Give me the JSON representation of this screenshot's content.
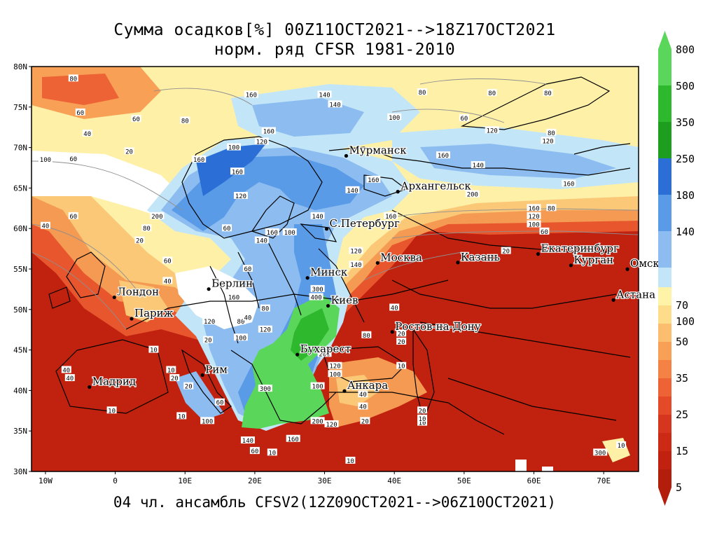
{
  "title": {
    "line1": "Сумма осадков[%] 00Z11OCT2021-->18Z17OCT2021",
    "line2": "норм. ряд CFSR 1981-2010"
  },
  "footer": "04 чл. ансамбль CFSV2(12Z09OCT2021-->06Z10OCT2021)",
  "axes": {
    "lat_labels": [
      "80N",
      "75N",
      "70N",
      "65N",
      "60N",
      "55N",
      "50N",
      "45N",
      "40N",
      "35N",
      "30N"
    ],
    "lon_labels": [
      "10W",
      "0",
      "10E",
      "20E",
      "30E",
      "40E",
      "50E",
      "60E",
      "70E"
    ]
  },
  "legend": {
    "upper": [
      {
        "label": "800",
        "color": "#5ad75a"
      },
      {
        "label": "500",
        "color": "#2eb82e"
      },
      {
        "label": "350",
        "color": "#1e9e1e"
      },
      {
        "label": "250",
        "color": "#2b6fd6"
      },
      {
        "label": "180",
        "color": "#5a9be8"
      },
      {
        "label": "140",
        "color": "#8dbdf0"
      },
      {
        "label": "",
        "color": "#c2e6f8"
      }
    ],
    "middle_label": "100",
    "lower": [
      {
        "label": "70",
        "color": "#fff3a8"
      },
      {
        "label": "",
        "color": "#fddd8a"
      },
      {
        "label": "50",
        "color": "#fbbe6e"
      },
      {
        "label": "",
        "color": "#f8a055"
      },
      {
        "label": "35",
        "color": "#f38244"
      },
      {
        "label": "",
        "color": "#ee6335"
      },
      {
        "label": "25",
        "color": "#e44a28"
      },
      {
        "label": "",
        "color": "#d6361d"
      },
      {
        "label": "15",
        "color": "#cc2a14"
      },
      {
        "label": "",
        "color": "#c0220f"
      },
      {
        "label": "5",
        "color": "#b31d0b"
      }
    ]
  },
  "cities": [
    {
      "name": "Мурманск",
      "lon": 33.1,
      "lat": 68.97
    },
    {
      "name": "Архангельск",
      "lon": 40.5,
      "lat": 64.55
    },
    {
      "name": "С.Петербург",
      "lon": 30.3,
      "lat": 59.95
    },
    {
      "name": "Москва",
      "lon": 37.6,
      "lat": 55.75
    },
    {
      "name": "Казань",
      "lon": 49.1,
      "lat": 55.8
    },
    {
      "name": "Екатеринбург",
      "lon": 60.6,
      "lat": 56.85
    },
    {
      "name": "Курган",
      "lon": 65.3,
      "lat": 55.45
    },
    {
      "name": "Омск",
      "lon": 73.4,
      "lat": 54.98
    },
    {
      "name": "Астана",
      "lon": 71.4,
      "lat": 51.17
    },
    {
      "name": "Минск",
      "lon": 27.55,
      "lat": 53.9
    },
    {
      "name": "Берлин",
      "lon": 13.4,
      "lat": 52.52
    },
    {
      "name": "Лондон",
      "lon": -0.13,
      "lat": 51.5
    },
    {
      "name": "Париж",
      "lon": 2.35,
      "lat": 48.86
    },
    {
      "name": "Киев",
      "lon": 30.5,
      "lat": 50.45
    },
    {
      "name": "Ростов-на-Дону",
      "lon": 39.7,
      "lat": 47.23
    },
    {
      "name": "Бухарест",
      "lon": 26.1,
      "lat": 44.43
    },
    {
      "name": "Рим",
      "lon": 12.5,
      "lat": 41.9
    },
    {
      "name": "Мадрид",
      "lon": -3.7,
      "lat": 40.42
    },
    {
      "name": "Анкара",
      "lon": 32.85,
      "lat": 39.93
    }
  ],
  "contour_values": [
    {
      "v": "80",
      "lon": -6,
      "lat": 78.5
    },
    {
      "v": "140",
      "lon": 30,
      "lat": 76.5
    },
    {
      "v": "140",
      "lon": 31.5,
      "lat": 75.3
    },
    {
      "v": "160",
      "lon": 19.5,
      "lat": 76.5
    },
    {
      "v": "80",
      "lon": 44,
      "lat": 76.8
    },
    {
      "v": "80",
      "lon": 54,
      "lat": 76.7
    },
    {
      "v": "80",
      "lon": 62,
      "lat": 76.7
    },
    {
      "v": "60",
      "lon": 3,
      "lat": 73.5
    },
    {
      "v": "80",
      "lon": 10,
      "lat": 73.3
    },
    {
      "v": "60",
      "lon": -5,
      "lat": 74.3
    },
    {
      "v": "40",
      "lon": -4,
      "lat": 71.7
    },
    {
      "v": "100",
      "lon": 40,
      "lat": 73.7
    },
    {
      "v": "60",
      "lon": 50,
      "lat": 73.6
    },
    {
      "v": "120",
      "lon": 54,
      "lat": 72.1
    },
    {
      "v": "80",
      "lon": 62.5,
      "lat": 71.8
    },
    {
      "v": "120",
      "lon": 62,
      "lat": 70.8
    },
    {
      "v": "160",
      "lon": 22,
      "lat": 72
    },
    {
      "v": "120",
      "lon": 21,
      "lat": 70.7
    },
    {
      "v": "100",
      "lon": 17,
      "lat": 70
    },
    {
      "v": "100",
      "lon": -10,
      "lat": 68.5
    },
    {
      "v": "60",
      "lon": -6,
      "lat": 68.6
    },
    {
      "v": "20",
      "lon": 2,
      "lat": 69.5
    },
    {
      "v": "160",
      "lon": 12,
      "lat": 68.5
    },
    {
      "v": "160",
      "lon": 47,
      "lat": 69
    },
    {
      "v": "140",
      "lon": 52,
      "lat": 67.8
    },
    {
      "v": "160",
      "lon": 37,
      "lat": 66
    },
    {
      "v": "140",
      "lon": 34,
      "lat": 64.7
    },
    {
      "v": "160",
      "lon": 17.5,
      "lat": 67
    },
    {
      "v": "120",
      "lon": 18,
      "lat": 64
    },
    {
      "v": "200",
      "lon": 51.2,
      "lat": 64.2
    },
    {
      "v": "160",
      "lon": 65,
      "lat": 65.5
    },
    {
      "v": "160",
      "lon": 60,
      "lat": 62.5
    },
    {
      "v": "120",
      "lon": 60,
      "lat": 61.5
    },
    {
      "v": "80",
      "lon": 62.5,
      "lat": 62.5
    },
    {
      "v": "100",
      "lon": 60,
      "lat": 60.5
    },
    {
      "v": "60",
      "lon": 61.5,
      "lat": 59.6
    },
    {
      "v": "200",
      "lon": 6,
      "lat": 61.5
    },
    {
      "v": "60",
      "lon": -6,
      "lat": 61.5
    },
    {
      "v": "40",
      "lon": -10,
      "lat": 60.3
    },
    {
      "v": "80",
      "lon": 4.5,
      "lat": 60
    },
    {
      "v": "60",
      "lon": 16,
      "lat": 60
    },
    {
      "v": "140",
      "lon": 29,
      "lat": 61.5
    },
    {
      "v": "160",
      "lon": 22.5,
      "lat": 59.5
    },
    {
      "v": "100",
      "lon": 25,
      "lat": 59.5
    },
    {
      "v": "140",
      "lon": 21,
      "lat": 58.5
    },
    {
      "v": "160",
      "lon": 39.5,
      "lat": 61.5
    },
    {
      "v": "120",
      "lon": 34.5,
      "lat": 57.2
    },
    {
      "v": "140",
      "lon": 34.5,
      "lat": 55.5
    },
    {
      "v": "20",
      "lon": 3.5,
      "lat": 58.5
    },
    {
      "v": "60",
      "lon": 7.5,
      "lat": 56
    },
    {
      "v": "40",
      "lon": 7.5,
      "lat": 53.5
    },
    {
      "v": "20",
      "lon": 56,
      "lat": 57.2
    },
    {
      "v": "60",
      "lon": 19,
      "lat": 55
    },
    {
      "v": "160",
      "lon": 17,
      "lat": 51.5
    },
    {
      "v": "300",
      "lon": 29,
      "lat": 52.5
    },
    {
      "v": "400",
      "lon": 28.8,
      "lat": 51.5
    },
    {
      "v": "80",
      "lon": 21.5,
      "lat": 50.1
    },
    {
      "v": "40",
      "lon": 40,
      "lat": 50.2
    },
    {
      "v": "120",
      "lon": 13.5,
      "lat": 48.5
    },
    {
      "v": "80",
      "lon": 18,
      "lat": 48.5
    },
    {
      "v": "40",
      "lon": 19,
      "lat": 49
    },
    {
      "v": "120",
      "lon": 21.5,
      "lat": 47.5
    },
    {
      "v": "100",
      "lon": 18,
      "lat": 46.5
    },
    {
      "v": "20",
      "lon": 41,
      "lat": 47
    },
    {
      "v": "20",
      "lon": 41,
      "lat": 46
    },
    {
      "v": "20",
      "lon": 13.3,
      "lat": 46.2
    },
    {
      "v": "10",
      "lon": 5.5,
      "lat": 45
    },
    {
      "v": "80",
      "lon": 36,
      "lat": 46.8
    },
    {
      "v": "200",
      "lon": 30,
      "lat": 44.5
    },
    {
      "v": "10",
      "lon": 41,
      "lat": 43
    },
    {
      "v": "120",
      "lon": 31.5,
      "lat": 43
    },
    {
      "v": "100",
      "lon": 31.5,
      "lat": 42
    },
    {
      "v": "10",
      "lon": 8,
      "lat": 42.5
    },
    {
      "v": "20",
      "lon": 8.5,
      "lat": 41.5
    },
    {
      "v": "40",
      "lon": -7,
      "lat": 42.5
    },
    {
      "v": "40",
      "lon": -6.5,
      "lat": 41.5
    },
    {
      "v": "20",
      "lon": 10.5,
      "lat": 40.5
    },
    {
      "v": "300",
      "lon": 21.5,
      "lat": 40.2
    },
    {
      "v": "100",
      "lon": 29,
      "lat": 40.5
    },
    {
      "v": "40",
      "lon": 35.5,
      "lat": 39.5
    },
    {
      "v": "40",
      "lon": 35.5,
      "lat": 38
    },
    {
      "v": "10",
      "lon": -0.5,
      "lat": 37.5
    },
    {
      "v": "10",
      "lon": 9.5,
      "lat": 36.8
    },
    {
      "v": "100",
      "lon": 13.2,
      "lat": 36.2
    },
    {
      "v": "60",
      "lon": 15,
      "lat": 38.5
    },
    {
      "v": "200",
      "lon": 29,
      "lat": 36.2
    },
    {
      "v": "120",
      "lon": 31,
      "lat": 35.8
    },
    {
      "v": "20",
      "lon": 35.8,
      "lat": 36.2
    },
    {
      "v": "20",
      "lon": 44,
      "lat": 37.5
    },
    {
      "v": "10",
      "lon": 44,
      "lat": 36
    },
    {
      "v": "10",
      "lon": 44,
      "lat": 36.5
    },
    {
      "v": "140",
      "lon": 19,
      "lat": 33.8
    },
    {
      "v": "160",
      "lon": 25.5,
      "lat": 34
    },
    {
      "v": "60",
      "lon": 20,
      "lat": 32.5
    },
    {
      "v": "10",
      "lon": 22.5,
      "lat": 32.3
    },
    {
      "v": "10",
      "lon": 33.7,
      "lat": 31.3
    },
    {
      "v": "300",
      "lon": 69.5,
      "lat": 32.3
    },
    {
      "v": "10",
      "lon": 72.5,
      "lat": 33.2
    }
  ]
}
